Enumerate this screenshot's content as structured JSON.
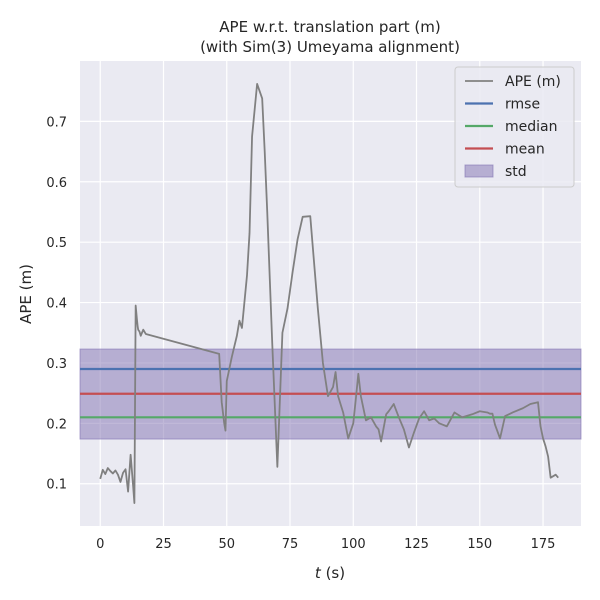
{
  "chart_data": {
    "type": "line",
    "title_line1": "APE w.r.t. translation part (m)",
    "title_line2": "(with Sim(3) Umeyama alignment)",
    "xlabel_var": "t",
    "xlabel_unit": " (s)",
    "ylabel": "APE (m)",
    "xlim": [
      -8,
      190
    ],
    "ylim": [
      0.03,
      0.8
    ],
    "xticks": [
      0,
      25,
      50,
      75,
      100,
      125,
      150,
      175
    ],
    "yticks": [
      0.1,
      0.2,
      0.3,
      0.4,
      0.5,
      0.6,
      0.7
    ],
    "grid": true,
    "legend_position": "top-right",
    "colors": {
      "background": "#eaeaf2",
      "grid": "#ffffff",
      "ape": "#808080",
      "rmse": "#4c72b0",
      "median": "#55a868",
      "mean": "#c44e52",
      "std": "#8172b2"
    },
    "stats": {
      "rmse": 0.29,
      "median": 0.21,
      "mean": 0.249,
      "std_low": 0.174,
      "std_high": 0.323
    },
    "legend": [
      {
        "key": "ape",
        "label": "APE (m)",
        "kind": "line"
      },
      {
        "key": "rmse",
        "label": "rmse",
        "kind": "line"
      },
      {
        "key": "median",
        "label": "median",
        "kind": "line"
      },
      {
        "key": "mean",
        "label": "mean",
        "kind": "line"
      },
      {
        "key": "std",
        "label": "std",
        "kind": "patch"
      }
    ],
    "series": [
      {
        "key": "ape",
        "x": [
          0,
          1,
          2,
          3,
          4,
          5,
          6,
          7,
          8,
          9,
          10,
          11,
          12,
          13,
          13.5,
          14,
          14.5,
          14.8,
          15,
          15.5,
          16,
          17,
          18,
          47,
          48,
          49,
          49.5,
          50,
          52,
          54,
          55,
          56,
          58,
          59,
          60,
          62,
          64,
          65,
          66,
          68,
          70,
          72,
          74,
          76,
          78,
          80,
          83,
          86,
          88,
          90,
          92,
          93,
          94,
          96,
          98,
          100,
          101,
          102,
          103,
          105,
          107,
          109,
          110,
          111,
          113,
          114,
          116,
          118,
          120,
          122,
          124,
          126,
          128,
          130,
          132,
          134,
          137,
          140,
          143,
          147,
          150,
          153,
          154,
          155,
          156,
          158,
          160,
          163,
          167,
          170,
          173,
          174,
          175,
          176,
          177,
          178,
          180,
          181
        ],
        "y": [
          0.108,
          0.123,
          0.116,
          0.126,
          0.121,
          0.117,
          0.122,
          0.115,
          0.103,
          0.118,
          0.124,
          0.087,
          0.148,
          0.096,
          0.068,
          0.395,
          0.372,
          0.36,
          0.355,
          0.352,
          0.345,
          0.355,
          0.348,
          0.315,
          0.235,
          0.2,
          0.188,
          0.27,
          0.31,
          0.345,
          0.37,
          0.358,
          0.445,
          0.515,
          0.675,
          0.762,
          0.738,
          0.65,
          0.55,
          0.33,
          0.128,
          0.35,
          0.39,
          0.45,
          0.505,
          0.542,
          0.543,
          0.39,
          0.3,
          0.245,
          0.26,
          0.285,
          0.245,
          0.218,
          0.175,
          0.2,
          0.24,
          0.282,
          0.245,
          0.205,
          0.21,
          0.195,
          0.19,
          0.17,
          0.215,
          0.22,
          0.232,
          0.21,
          0.19,
          0.16,
          0.185,
          0.208,
          0.22,
          0.205,
          0.208,
          0.2,
          0.195,
          0.218,
          0.21,
          0.215,
          0.22,
          0.218,
          0.216,
          0.216,
          0.198,
          0.175,
          0.212,
          0.218,
          0.225,
          0.232,
          0.235,
          0.195,
          0.175,
          0.162,
          0.145,
          0.11,
          0.115,
          0.11
        ]
      }
    ]
  }
}
